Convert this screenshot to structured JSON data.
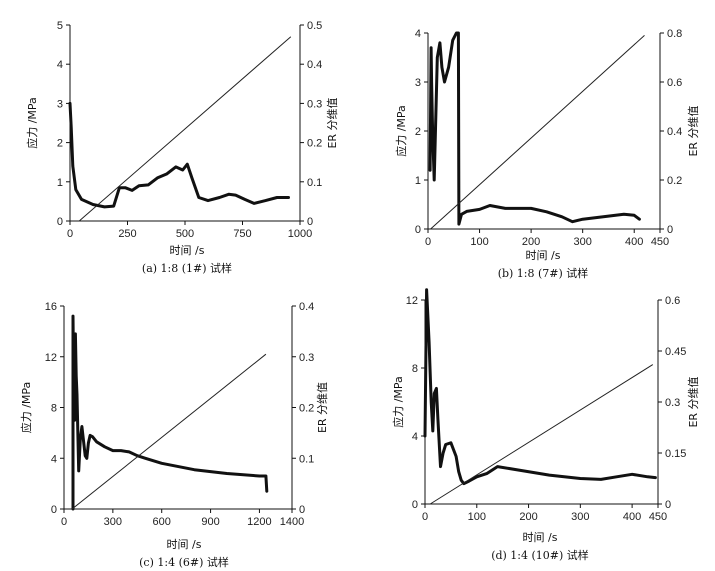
{
  "chart_data": [
    {
      "type": "line",
      "id": "a",
      "caption": "(a) 1:8 (1#) 试样",
      "xlabel": "时间 /s",
      "ylabel": "应力 /MPa",
      "y2label": "ER 分维值",
      "xlim": [
        0,
        1000
      ],
      "ylim": [
        0,
        5
      ],
      "y2lim": [
        0,
        0.5
      ],
      "xticks": [
        0,
        250,
        500,
        750,
        1000
      ],
      "yticks": [
        0,
        1,
        2,
        3,
        4,
        5
      ],
      "y2ticks": [
        0,
        0.1,
        0.2,
        0.3,
        0.4,
        0.5
      ],
      "series": [
        {
          "name": "stress",
          "axis": "left",
          "x": [
            0,
            5,
            12,
            25,
            50,
            100,
            150,
            190,
            215,
            240,
            270,
            300,
            340,
            380,
            420,
            460,
            490,
            510,
            530,
            560,
            600,
            650,
            690,
            720,
            760,
            800,
            850,
            900,
            950
          ],
          "y": [
            3.0,
            2.4,
            1.4,
            0.8,
            0.55,
            0.42,
            0.36,
            0.38,
            0.85,
            0.85,
            0.78,
            0.9,
            0.92,
            1.1,
            1.2,
            1.38,
            1.3,
            1.45,
            1.1,
            0.6,
            0.52,
            0.6,
            0.68,
            0.66,
            0.55,
            0.45,
            0.52,
            0.6,
            0.6
          ]
        },
        {
          "name": "ER",
          "axis": "right",
          "x": [
            40,
            960
          ],
          "y": [
            0.0,
            0.47
          ]
        }
      ]
    },
    {
      "type": "line",
      "id": "b",
      "caption": "(b) 1:8 (7#) 试样",
      "xlabel": "时间 /s",
      "ylabel": "应力 /MPa",
      "y2label": "ER 分维值",
      "xlim": [
        0,
        450
      ],
      "ylim": [
        0,
        4
      ],
      "y2lim": [
        0,
        0.8
      ],
      "xticks": [
        0,
        100,
        200,
        300,
        400,
        450
      ],
      "yticks": [
        0,
        1,
        2,
        3,
        4
      ],
      "y2ticks": [
        0,
        0.2,
        0.4,
        0.6,
        0.8
      ],
      "series": [
        {
          "name": "stress",
          "axis": "left",
          "x": [
            4,
            6,
            7,
            9,
            12,
            14,
            18,
            23,
            27,
            32,
            40,
            48,
            55,
            59,
            60,
            60,
            65,
            75,
            100,
            120,
            150,
            200,
            230,
            260,
            280,
            300,
            340,
            380,
            400,
            410
          ],
          "y": [
            1.2,
            3.7,
            3.0,
            2.0,
            1.0,
            1.8,
            3.5,
            3.8,
            3.3,
            3.0,
            3.3,
            3.85,
            4.0,
            4.0,
            0.1,
            0.1,
            0.3,
            0.36,
            0.4,
            0.48,
            0.42,
            0.42,
            0.35,
            0.25,
            0.15,
            0.2,
            0.25,
            0.3,
            0.28,
            0.2
          ]
        },
        {
          "name": "ER",
          "axis": "right",
          "x": [
            5,
            420
          ],
          "y": [
            0.0,
            0.79
          ]
        }
      ]
    },
    {
      "type": "line",
      "id": "c",
      "caption": "(c) 1:4 (6#) 试样",
      "xlabel": "时间 /s",
      "ylabel": "应力 /MPa",
      "y2label": "ER 分维值",
      "xlim": [
        0,
        1400
      ],
      "ylim": [
        0,
        16
      ],
      "y2lim": [
        0,
        0.4
      ],
      "xticks": [
        0,
        300,
        600,
        900,
        1200,
        1400
      ],
      "yticks": [
        0,
        4,
        8,
        12,
        16
      ],
      "y2ticks": [
        0,
        0.1,
        0.2,
        0.3,
        0.4
      ],
      "series": [
        {
          "name": "stress",
          "axis": "left",
          "x": [
            55,
            55,
            60,
            65,
            70,
            75,
            80,
            90,
            100,
            110,
            130,
            140,
            150,
            160,
            175,
            200,
            250,
            300,
            350,
            400,
            450,
            500,
            600,
            800,
            1000,
            1200,
            1240,
            1245
          ],
          "y": [
            0,
            15.2,
            9.0,
            7.0,
            13.8,
            10.5,
            9.0,
            3.0,
            5.5,
            6.5,
            4.2,
            4.0,
            5.2,
            5.8,
            5.7,
            5.3,
            4.9,
            4.6,
            4.6,
            4.5,
            4.2,
            4.0,
            3.6,
            3.1,
            2.8,
            2.6,
            2.6,
            1.4
          ]
        },
        {
          "name": "ER",
          "axis": "right",
          "x": [
            50,
            1240
          ],
          "y": [
            0.0,
            0.305
          ]
        }
      ]
    },
    {
      "type": "line",
      "id": "d",
      "caption": "(d) 1:4 (10#) 试样",
      "xlabel": "时间 /s",
      "ylabel": "应力 /MPa",
      "y2label": "ER 分维值",
      "xlim": [
        0,
        450
      ],
      "ylim": [
        0,
        12
      ],
      "y2lim": [
        0,
        0.6
      ],
      "xticks": [
        0,
        100,
        200,
        300,
        400,
        450
      ],
      "yticks": [
        0,
        4,
        8,
        12
      ],
      "y2ticks": [
        0,
        0.15,
        0.3,
        0.45,
        0.6
      ],
      "series": [
        {
          "name": "stress",
          "axis": "left",
          "x": [
            0,
            3,
            8,
            12,
            15,
            18,
            22,
            25,
            30,
            35,
            40,
            50,
            60,
            65,
            70,
            75,
            85,
            100,
            120,
            140,
            180,
            240,
            300,
            340,
            370,
            400,
            430,
            445
          ],
          "y": [
            4.0,
            12.6,
            9.5,
            6.0,
            4.3,
            6.5,
            6.8,
            5.0,
            2.2,
            3.0,
            3.5,
            3.6,
            2.8,
            1.9,
            1.4,
            1.2,
            1.35,
            1.6,
            1.8,
            2.2,
            2.0,
            1.7,
            1.5,
            1.45,
            1.6,
            1.75,
            1.6,
            1.55
          ]
        },
        {
          "name": "ER",
          "axis": "right",
          "x": [
            10,
            440
          ],
          "y": [
            0.0,
            0.41
          ]
        }
      ]
    }
  ]
}
